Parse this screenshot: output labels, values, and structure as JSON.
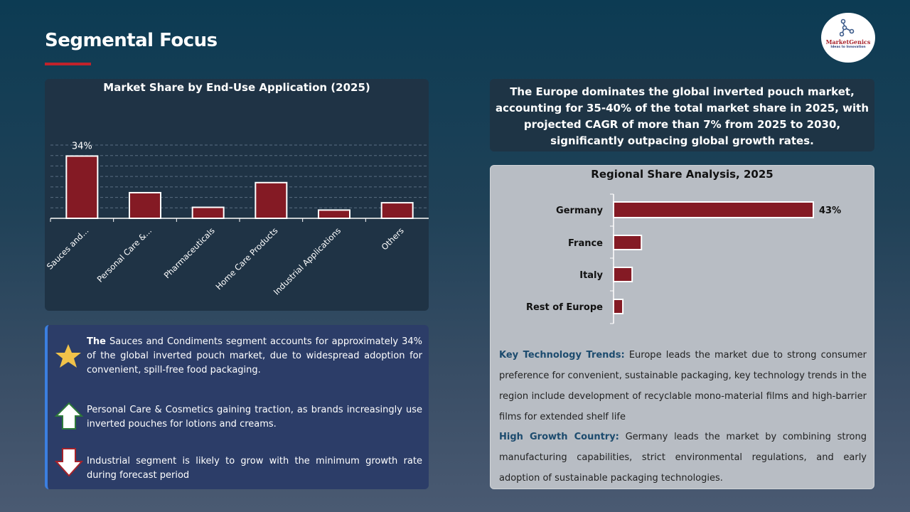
{
  "page": {
    "title": "Segmental Focus",
    "logo": {
      "name": "MarketGenics",
      "tagline": "Ideas to Innovation"
    }
  },
  "colors": {
    "bar": "#841a24",
    "accent": "#c0222b"
  },
  "chart_data": [
    {
      "type": "bar",
      "title": "Market Share by End-Use Application (2025)",
      "categories": [
        "Sauces and...",
        "Personal Care &...",
        "Pharmaceuticals",
        "Home Care Products",
        "Industrial Applications",
        "Others"
      ],
      "values": [
        34,
        14,
        6,
        19.5,
        4.5,
        8.5
      ],
      "data_labels": [
        "34%",
        "",
        "",
        "",
        "",
        ""
      ],
      "ylim": [
        0,
        40
      ],
      "grid": true,
      "xlabel": "",
      "ylabel": ""
    },
    {
      "type": "bar",
      "orientation": "horizontal",
      "title": "Regional Share Analysis, 2025",
      "categories": [
        "Germany",
        "France",
        "Italy",
        "Rest of Europe"
      ],
      "values": [
        43,
        6,
        4,
        2
      ],
      "data_labels": [
        "43%",
        "",
        "",
        ""
      ],
      "xlim": [
        0,
        50
      ],
      "grid": false
    }
  ],
  "notes": [
    {
      "icon": "star-icon",
      "lead": "The",
      "text": " Sauces and Condiments  segment accounts for approximately 34% of the global inverted pouch market, due to widespread adoption for convenient, spill-free food packaging."
    },
    {
      "icon": "arrow-up-icon",
      "lead": "",
      "text": "Personal Care & Cosmetics gaining traction, as brands increasingly use inverted pouches for lotions and creams."
    },
    {
      "icon": "arrow-down-icon",
      "lead": "",
      "text": "Industrial segment is likely to grow with the minimum growth rate during forecast period"
    }
  ],
  "summary": "The Europe dominates the global inverted pouch market, accounting for 35-40% of the total market share in 2025, with projected CAGR of more than 7% from 2025 to 2030, significantly outpacing global growth rates.",
  "trends": {
    "label": "Key Technology Trends:",
    "text": " Europe leads the market due to strong consumer preference for convenient, sustainable packaging, key technology trends in the region include development of recyclable mono-material films and high-barrier films for extended shelf life"
  },
  "growth": {
    "label": "High Growth Country:",
    "text": " Germany leads the market by combining strong manufacturing capabilities, strict environmental regulations, and early adoption of sustainable packaging technologies."
  }
}
